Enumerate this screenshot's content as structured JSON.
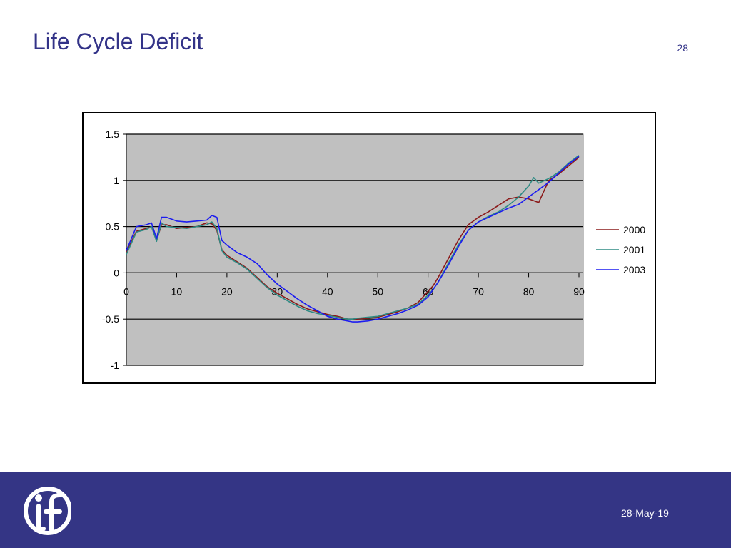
{
  "slide": {
    "title": "Life Cycle Deficit",
    "page_number": "28",
    "date": "28-May-19"
  },
  "colors": {
    "title": "#333388",
    "footer_bg": "#343585",
    "plot_bg": "#c0c0c0",
    "series_2000": "#8b1a1a",
    "series_2001": "#2e8b84",
    "series_2003": "#1c1cf0"
  },
  "chart_data": {
    "type": "line",
    "title": "",
    "xlabel": "",
    "ylabel": "",
    "xlim": [
      0,
      90
    ],
    "ylim": [
      -1,
      1.5
    ],
    "x_ticks": [
      "0",
      "10",
      "20",
      "30",
      "40",
      "50",
      "60",
      "70",
      "80",
      "90"
    ],
    "y_ticks": [
      "1.5",
      "1",
      "0.5",
      "0",
      "-0.5",
      "-1"
    ],
    "grid": "horizontal",
    "legend_position": "right",
    "x": [
      0,
      2,
      4,
      5,
      6,
      7,
      8,
      10,
      12,
      14,
      16,
      17,
      18,
      19,
      20,
      22,
      24,
      26,
      28,
      30,
      32,
      34,
      36,
      38,
      40,
      42,
      44,
      45,
      46,
      48,
      50,
      52,
      54,
      56,
      58,
      60,
      61,
      62,
      64,
      66,
      68,
      70,
      72,
      74,
      76,
      78,
      80,
      81,
      82,
      84,
      86,
      88,
      90
    ],
    "series": [
      {
        "name": "2000",
        "color_key": "series_2000",
        "values": [
          0.22,
          0.45,
          0.48,
          0.5,
          0.35,
          0.52,
          0.52,
          0.48,
          0.49,
          0.5,
          0.54,
          0.53,
          0.46,
          0.25,
          0.19,
          0.12,
          0.05,
          -0.05,
          -0.15,
          -0.22,
          -0.28,
          -0.34,
          -0.39,
          -0.42,
          -0.45,
          -0.47,
          -0.5,
          -0.5,
          -0.5,
          -0.49,
          -0.48,
          -0.45,
          -0.42,
          -0.38,
          -0.32,
          -0.2,
          -0.14,
          -0.05,
          0.15,
          0.35,
          0.52,
          0.6,
          0.66,
          0.73,
          0.8,
          0.82,
          0.8,
          0.78,
          0.76,
          1.0,
          1.07,
          1.16,
          1.25
        ]
      },
      {
        "name": "2001",
        "color_key": "series_2001",
        "values": [
          0.2,
          0.44,
          0.47,
          0.5,
          0.34,
          0.54,
          0.5,
          0.49,
          0.48,
          0.5,
          0.52,
          0.55,
          0.48,
          0.24,
          0.17,
          0.11,
          0.04,
          -0.06,
          -0.16,
          -0.24,
          -0.3,
          -0.36,
          -0.41,
          -0.44,
          -0.46,
          -0.48,
          -0.5,
          -0.5,
          -0.49,
          -0.48,
          -0.47,
          -0.44,
          -0.41,
          -0.38,
          -0.34,
          -0.24,
          -0.18,
          -0.1,
          0.1,
          0.3,
          0.46,
          0.55,
          0.61,
          0.66,
          0.73,
          0.82,
          0.94,
          1.03,
          0.97,
          1.02,
          1.09,
          1.19,
          1.27
        ]
      },
      {
        "name": "2003",
        "color_key": "series_2003",
        "values": [
          0.24,
          0.5,
          0.52,
          0.54,
          0.37,
          0.6,
          0.6,
          0.56,
          0.55,
          0.56,
          0.57,
          0.62,
          0.6,
          0.35,
          0.3,
          0.22,
          0.17,
          0.1,
          -0.02,
          -0.12,
          -0.2,
          -0.28,
          -0.35,
          -0.41,
          -0.47,
          -0.5,
          -0.52,
          -0.53,
          -0.53,
          -0.52,
          -0.5,
          -0.47,
          -0.44,
          -0.4,
          -0.35,
          -0.26,
          -0.18,
          -0.1,
          0.08,
          0.28,
          0.46,
          0.55,
          0.6,
          0.65,
          0.7,
          0.74,
          0.82,
          0.86,
          0.9,
          0.98,
          1.08,
          1.18,
          1.26
        ]
      }
    ]
  }
}
